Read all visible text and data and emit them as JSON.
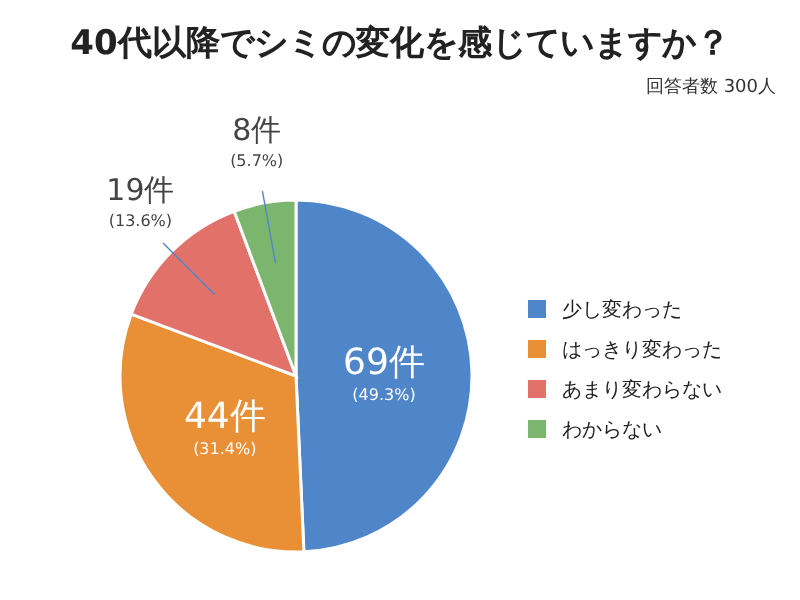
{
  "chart_data": {
    "type": "pie",
    "title": "40代以降でシミの変化を感じていますか？",
    "subtitle": "回答者数 300人",
    "categories": [
      "少し変わった",
      "はっきり変わった",
      "あまり変わらない",
      "わからない"
    ],
    "values": [
      69,
      44,
      19,
      8
    ],
    "colors": [
      "#4f86c9",
      "#e98f35",
      "#e2716a",
      "#7cb56e"
    ],
    "value_labels": [
      "69件\n(49.3%)",
      "44件\n(31.4%)",
      "19件\n(13.6%)",
      "8件\n(5.7%)"
    ],
    "legend": "right"
  }
}
